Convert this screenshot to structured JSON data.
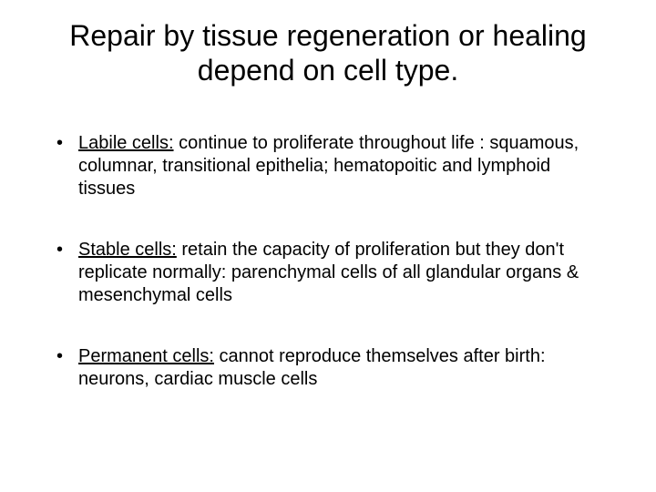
{
  "title": "Repair by tissue regeneration or healing depend on cell type.",
  "bullets": [
    {
      "lead": "Labile cells:",
      "rest": " continue to proliferate throughout life : squamous, columnar, transitional epithelia; hematopoitic and  lymphoid tissues"
    },
    {
      "lead": "Stable cells:",
      "rest": " retain the capacity of proliferation but they don't replicate normally: parenchymal cells of all glandular organs & mesenchymal cells"
    },
    {
      "lead": "Permanent cells:",
      "rest": " cannot reproduce themselves after birth: neurons, cardiac muscle cells"
    }
  ],
  "colors": {
    "background": "#ffffff",
    "text": "#000000"
  },
  "typography": {
    "title_fontsize": 32,
    "body_fontsize": 20,
    "font_family": "Arial"
  }
}
